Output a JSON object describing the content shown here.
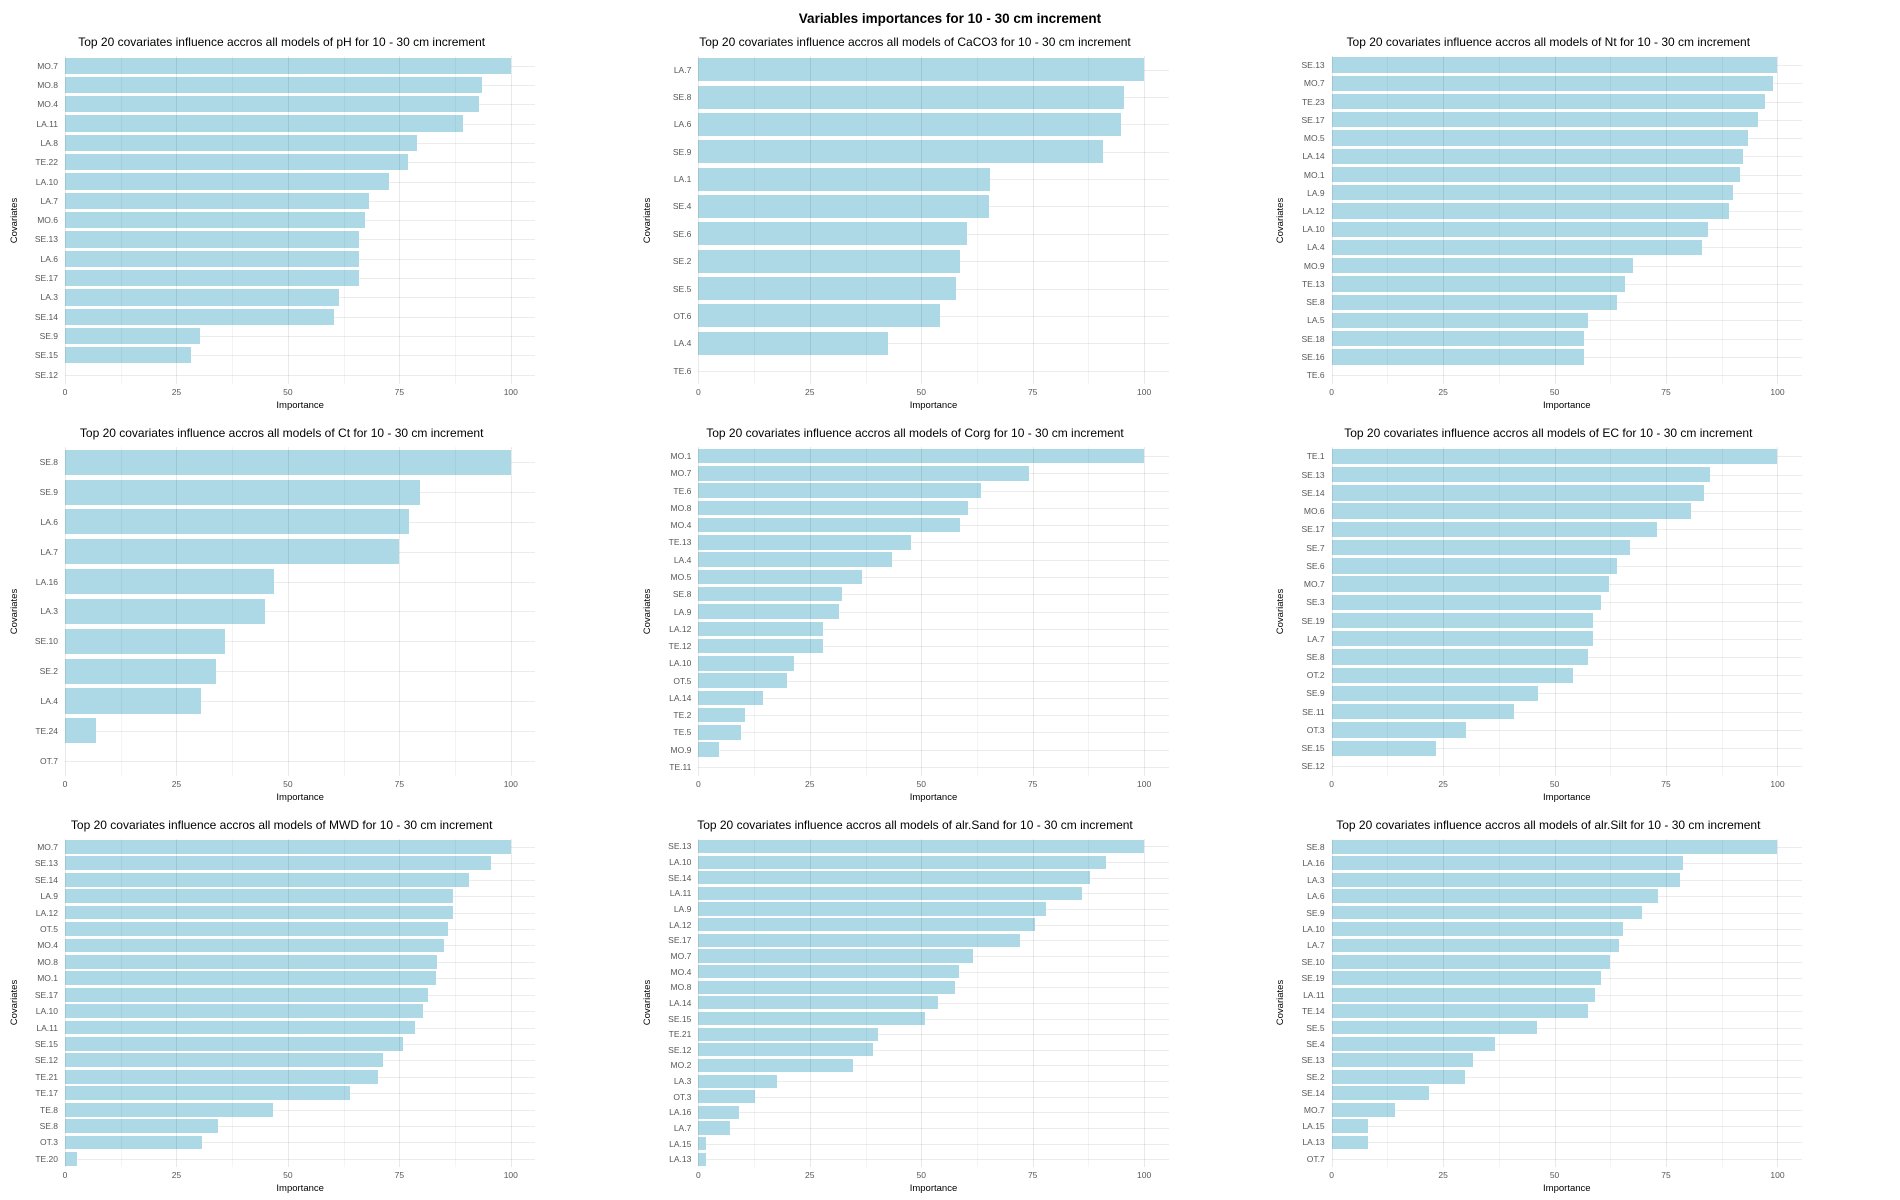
{
  "page_title": "Variables importances for 10 - 30 cm increment",
  "axis": {
    "x_label": "Importance",
    "y_label": "Covariates",
    "x_ticks": [
      0,
      25,
      50,
      75,
      100
    ],
    "x_minor_ticks": [
      12.5,
      37.5,
      62.5,
      87.5
    ]
  },
  "style": {
    "bar_color": "#ADD8E6"
  },
  "chart_data": [
    {
      "type": "bar",
      "target": "pH",
      "title": "Top 20 covariates influence accros all models of pH for 10 - 30 cm increment",
      "xlabel": "Importance",
      "ylabel": "Covariates",
      "xlim": [
        0,
        100
      ],
      "grid": true,
      "categories": [
        "MO.7",
        "MO.8",
        "MO.4",
        "LA.11",
        "LA.8",
        "TE.22",
        "LA.10",
        "LA.7",
        "MO.6",
        "SE.13",
        "LA.6",
        "SE.17",
        "LA.3",
        "SE.14",
        "SE.9",
        "SE.15",
        "SE.12"
      ],
      "values": [
        100,
        93.6,
        92.9,
        89.3,
        79.0,
        77.0,
        72.6,
        68.3,
        67.4,
        66.0,
        66.0,
        66.0,
        61.5,
        60.3,
        30.2,
        28.3,
        0
      ]
    },
    {
      "type": "bar",
      "target": "CaCO3",
      "title": "Top 20 covariates influence accros all models of CaCO3 for 10 - 30 cm increment",
      "xlabel": "Importance",
      "ylabel": "Covariates",
      "xlim": [
        0,
        100
      ],
      "grid": true,
      "categories": [
        "LA.7",
        "SE.8",
        "LA.6",
        "SE.9",
        "LA.1",
        "SE.4",
        "SE.6",
        "SE.2",
        "SE.5",
        "OT.6",
        "LA.4",
        "TE.6"
      ],
      "values": [
        100,
        95.5,
        94.8,
        90.8,
        65.5,
        65.1,
        60.2,
        58.8,
        57.9,
        54.2,
        42.5,
        0
      ]
    },
    {
      "type": "bar",
      "target": "Nt",
      "title": "Top 20 covariates influence accros all models of Nt for 10 - 30 cm increment",
      "xlabel": "Importance",
      "ylabel": "Covariates",
      "xlim": [
        0,
        100
      ],
      "grid": true,
      "categories": [
        "SE.13",
        "MO.7",
        "TE.23",
        "SE.17",
        "MO.5",
        "LA.14",
        "MO.1",
        "LA.9",
        "LA.12",
        "LA.10",
        "LA.4",
        "MO.9",
        "TE.13",
        "SE.8",
        "LA.5",
        "SE.18",
        "SE.16",
        "TE.6"
      ],
      "values": [
        100,
        99.0,
        97.1,
        95.6,
        93.4,
        92.3,
        91.7,
        90.0,
        89.2,
        84.4,
        83.1,
        67.5,
        65.8,
        63.9,
        57.4,
        56.5,
        56.5,
        0
      ]
    },
    {
      "type": "bar",
      "target": "Ct",
      "title": "Top 20 covariates influence accros all models of Ct for 10 - 30 cm increment",
      "xlabel": "Importance",
      "ylabel": "Covariates",
      "xlim": [
        0,
        100
      ],
      "grid": true,
      "categories": [
        "SE.8",
        "SE.9",
        "LA.6",
        "LA.7",
        "LA.16",
        "LA.3",
        "SE.10",
        "SE.2",
        "LA.4",
        "TE.24",
        "OT.7"
      ],
      "values": [
        100,
        79.7,
        77.2,
        74.9,
        46.9,
        44.9,
        36.0,
        33.8,
        30.6,
        7.0,
        0
      ]
    },
    {
      "type": "bar",
      "target": "Corg",
      "title": "Top 20 covariates influence accros all models of Corg for 10 - 30 cm increment",
      "xlabel": "Importance",
      "ylabel": "Covariates",
      "xlim": [
        0,
        100
      ],
      "grid": true,
      "categories": [
        "MO.1",
        "MO.7",
        "TE.6",
        "MO.8",
        "MO.4",
        "TE.13",
        "LA.4",
        "MO.5",
        "SE.8",
        "LA.9",
        "LA.12",
        "TE.12",
        "LA.10",
        "OT.5",
        "LA.14",
        "TE.2",
        "TE.5",
        "MO.9",
        "TE.11"
      ],
      "values": [
        100,
        74.1,
        63.5,
        60.6,
        58.7,
        47.8,
        43.4,
        36.8,
        32.2,
        31.5,
        28.0,
        28.0,
        21.5,
        20.0,
        14.5,
        10.4,
        9.5,
        4.6,
        0
      ]
    },
    {
      "type": "bar",
      "target": "EC",
      "title": "Top 20 covariates influence accros all models of EC for 10 - 30 cm increment",
      "xlabel": "Importance",
      "ylabel": "Covariates",
      "xlim": [
        0,
        100
      ],
      "grid": true,
      "categories": [
        "TE.1",
        "SE.13",
        "SE.14",
        "MO.6",
        "SE.17",
        "SE.7",
        "SE.6",
        "MO.7",
        "SE.3",
        "SE.19",
        "LA.7",
        "SE.8",
        "OT.2",
        "SE.9",
        "SE.11",
        "OT.3",
        "SE.15",
        "SE.12"
      ],
      "values": [
        100,
        84.9,
        83.5,
        80.7,
        72.9,
        67.0,
        63.9,
        62.1,
        60.4,
        58.6,
        58.6,
        57.4,
        54.2,
        46.2,
        40.8,
        30.1,
        23.4,
        0
      ]
    },
    {
      "type": "bar",
      "target": "MWD",
      "title": "Top 20 covariates influence accros all models of MWD for 10 - 30 cm increment",
      "xlabel": "Importance",
      "ylabel": "Covariates",
      "xlim": [
        0,
        100
      ],
      "grid": true,
      "categories": [
        "MO.7",
        "SE.13",
        "SE.14",
        "LA.9",
        "LA.12",
        "OT.5",
        "MO.4",
        "MO.8",
        "MO.1",
        "SE.17",
        "LA.10",
        "LA.11",
        "SE.15",
        "SE.12",
        "TE.21",
        "TE.17",
        "TE.8",
        "SE.8",
        "OT.3",
        "TE.20"
      ],
      "values": [
        100,
        95.5,
        90.7,
        87.1,
        87.1,
        85.9,
        85.1,
        83.5,
        83.2,
        81.4,
        80.4,
        78.5,
        75.9,
        71.4,
        70.1,
        64.0,
        46.6,
        34.4,
        30.8,
        2.8
      ]
    },
    {
      "type": "bar",
      "target": "alr.Sand",
      "title": "Top 20 covariates influence accros all models of alr.Sand for 10 - 30 cm increment",
      "xlabel": "Importance",
      "ylabel": "Covariates",
      "xlim": [
        0,
        100
      ],
      "grid": true,
      "categories": [
        "SE.13",
        "LA.10",
        "SE.14",
        "LA.11",
        "LA.9",
        "LA.12",
        "SE.17",
        "MO.7",
        "MO.4",
        "MO.8",
        "LA.14",
        "SE.15",
        "TE.21",
        "SE.12",
        "MO.2",
        "LA.3",
        "OT.3",
        "LA.16",
        "LA.7",
        "LA.15",
        "LA.13"
      ],
      "values": [
        100,
        91.5,
        87.9,
        86.1,
        77.9,
        75.6,
        72.1,
        61.7,
        58.4,
        57.6,
        53.8,
        50.8,
        40.2,
        39.2,
        34.7,
        17.6,
        12.8,
        9.1,
        7.2,
        1.8,
        1.8
      ]
    },
    {
      "type": "bar",
      "target": "alr.Silt",
      "title": "Top 20 covariates influence accros all models of alr.Silt for 10 - 30 cm increment",
      "xlabel": "Importance",
      "ylabel": "Covariates",
      "xlim": [
        0,
        100
      ],
      "grid": true,
      "categories": [
        "SE.8",
        "LA.16",
        "LA.3",
        "LA.6",
        "SE.9",
        "LA.10",
        "LA.7",
        "SE.10",
        "SE.19",
        "LA.11",
        "TE.14",
        "SE.5",
        "SE.4",
        "SE.13",
        "SE.2",
        "SE.14",
        "MO.7",
        "LA.15",
        "LA.13",
        "OT.7"
      ],
      "values": [
        100,
        78.9,
        78.2,
        73.3,
        69.6,
        65.3,
        64.4,
        62.5,
        60.4,
        59.1,
        57.4,
        46.0,
        36.7,
        31.7,
        29.8,
        21.8,
        14.2,
        8.1,
        8.1,
        0
      ]
    }
  ]
}
